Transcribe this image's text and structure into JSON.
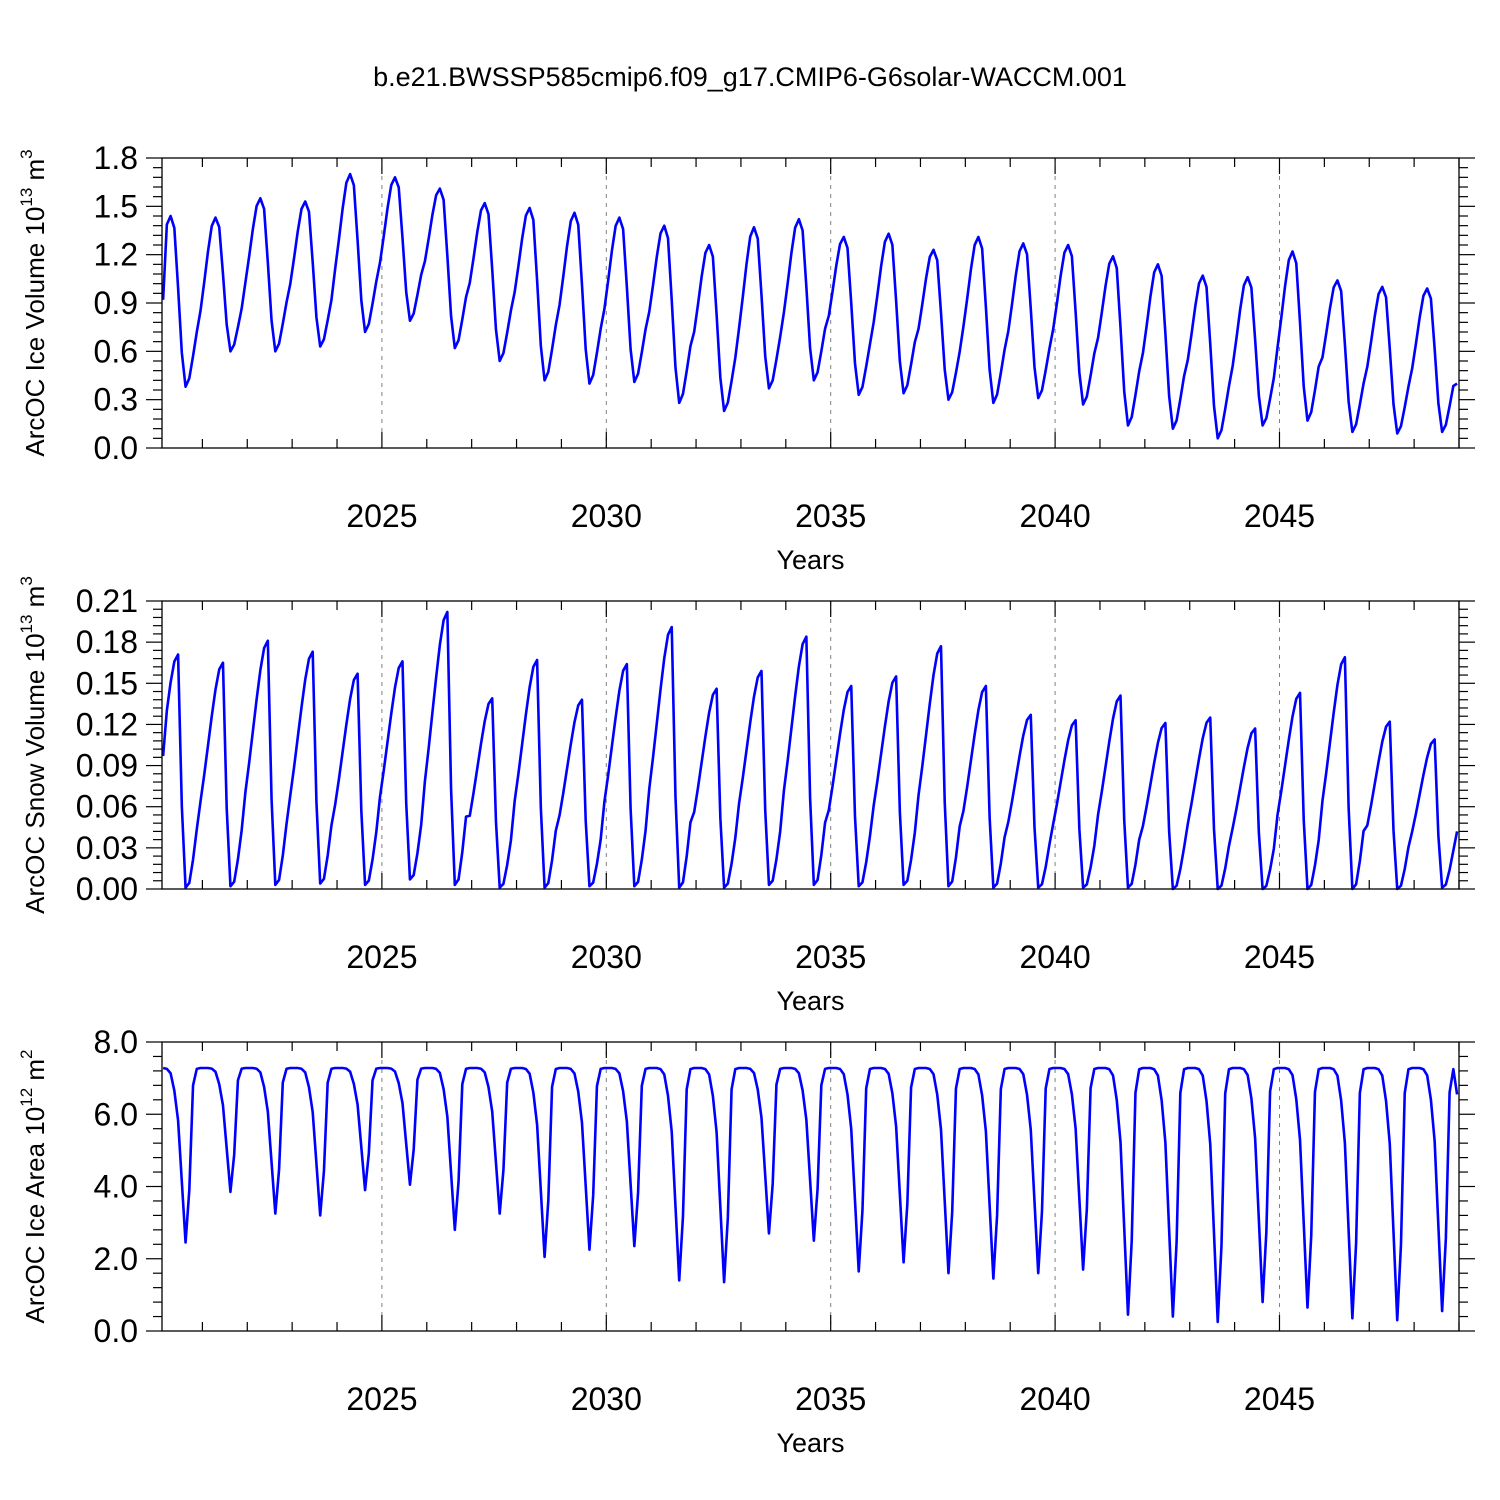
{
  "title": "b.e21.BWSSP585cmip6.f09_g17.CMIP6-G6solar-WACCM.001",
  "colors": {
    "line": "#0000ff",
    "axis": "#000000",
    "refline": "#808080"
  },
  "chart_data": [
    {
      "type": "line",
      "name": "ice_volume",
      "ylabel": "ArcOC Ice Volume 10",
      "ylabel_exp": "13",
      "ylabel_unit": " m",
      "ylabel_unit_exp": "3",
      "xlabel": "Years",
      "xlim": [
        2020.1,
        2049.0
      ],
      "ylim": [
        0.0,
        1.8
      ],
      "yticks": [
        0.0,
        0.3,
        0.6,
        0.9,
        1.2,
        1.5,
        1.8
      ],
      "ytick_labels": [
        "0.0",
        "0.3",
        "0.6",
        "0.9",
        "1.2",
        "1.5",
        "1.8"
      ],
      "xticks": [
        2025,
        2030,
        2035,
        2040,
        2045
      ],
      "xtick_labels": [
        "2025",
        "2030",
        "2035",
        "2040",
        "2045"
      ],
      "reference_lines_x": [
        2025,
        2030,
        2035,
        2040,
        2045
      ],
      "series_start": 2020.125,
      "series_step": 0.08333,
      "annual_max": [
        1.44,
        1.43,
        1.55,
        1.53,
        1.7,
        1.68,
        1.61,
        1.52,
        1.49,
        1.46,
        1.43,
        1.38,
        1.26,
        1.37,
        1.42,
        1.31,
        1.33,
        1.23,
        1.31,
        1.27,
        1.26,
        1.19,
        1.14,
        1.07,
        1.06,
        1.22,
        1.04,
        1.0,
        0.99
      ],
      "annual_min": [
        0.38,
        0.6,
        0.6,
        0.63,
        0.72,
        0.79,
        0.62,
        0.54,
        0.42,
        0.4,
        0.41,
        0.28,
        0.23,
        0.37,
        0.42,
        0.33,
        0.34,
        0.3,
        0.28,
        0.31,
        0.27,
        0.14,
        0.12,
        0.06,
        0.14,
        0.17,
        0.1,
        0.09,
        0.1
      ],
      "start_value": 0.92,
      "end_value": 0.4,
      "series": [
        {
          "values": []
        }
      ]
    },
    {
      "type": "line",
      "name": "snow_volume",
      "ylabel": "ArcOC Snow Volume 10",
      "ylabel_exp": "13",
      "ylabel_unit": " m",
      "ylabel_unit_exp": "3",
      "xlabel": "Years",
      "xlim": [
        2020.1,
        2049.0
      ],
      "ylim": [
        0.0,
        0.21
      ],
      "yticks": [
        0.0,
        0.03,
        0.06,
        0.09,
        0.12,
        0.15,
        0.18,
        0.21
      ],
      "ytick_labels": [
        "0.00",
        "0.03",
        "0.06",
        "0.09",
        "0.12",
        "0.15",
        "0.18",
        "0.21"
      ],
      "xticks": [
        2025,
        2030,
        2035,
        2040,
        2045
      ],
      "xtick_labels": [
        "2025",
        "2030",
        "2035",
        "2040",
        "2045"
      ],
      "reference_lines_x": [
        2025,
        2030,
        2035,
        2040,
        2045
      ],
      "series_start": 2020.125,
      "series_step": 0.08333,
      "annual_max": [
        0.171,
        0.165,
        0.181,
        0.173,
        0.157,
        0.166,
        0.202,
        0.139,
        0.167,
        0.138,
        0.164,
        0.191,
        0.146,
        0.159,
        0.184,
        0.148,
        0.155,
        0.177,
        0.148,
        0.127,
        0.123,
        0.141,
        0.121,
        0.125,
        0.117,
        0.143,
        0.169,
        0.122,
        0.109
      ],
      "annual_min": [
        0.001,
        0.002,
        0.003,
        0.004,
        0.003,
        0.007,
        0.003,
        0.001,
        0.001,
        0.002,
        0.002,
        0.001,
        0.001,
        0.003,
        0.003,
        0.002,
        0.003,
        0.002,
        0.001,
        0.001,
        0.001,
        0.001,
        0.0,
        0.0,
        0.0,
        0.0,
        0.0,
        0.0,
        0.001
      ],
      "start_value": 0.097,
      "end_value": 0.042,
      "series": [
        {
          "values": []
        }
      ]
    },
    {
      "type": "line",
      "name": "ice_area",
      "ylabel": "ArcOC Ice Area 10",
      "ylabel_exp": "12",
      "ylabel_unit": " m",
      "ylabel_unit_exp": "2",
      "xlabel": "Years",
      "xlim": [
        2020.1,
        2049.0
      ],
      "ylim": [
        0.0,
        8.0
      ],
      "yticks": [
        0.0,
        2.0,
        4.0,
        6.0,
        8.0
      ],
      "ytick_labels": [
        "0.0",
        "2.0",
        "4.0",
        "6.0",
        "8.0"
      ],
      "xticks": [
        2025,
        2030,
        2035,
        2040,
        2045
      ],
      "xtick_labels": [
        "2025",
        "2030",
        "2035",
        "2040",
        "2045"
      ],
      "reference_lines_x": [
        2025,
        2030,
        2035,
        2040,
        2045
      ],
      "series_start": 2020.125,
      "series_step": 0.08333,
      "annual_max": [
        7.28,
        7.28,
        7.28,
        7.28,
        7.28,
        7.28,
        7.28,
        7.28,
        7.28,
        7.28,
        7.28,
        7.28,
        7.28,
        7.28,
        7.28,
        7.28,
        7.28,
        7.28,
        7.28,
        7.28,
        7.28,
        7.28,
        7.28,
        7.28,
        7.28,
        7.28,
        7.28,
        7.28,
        7.28
      ],
      "annual_min": [
        2.45,
        3.85,
        3.25,
        3.2,
        3.9,
        4.05,
        2.8,
        3.25,
        2.05,
        2.25,
        2.35,
        1.4,
        1.35,
        2.7,
        2.5,
        1.65,
        1.9,
        1.6,
        1.45,
        1.6,
        1.7,
        0.45,
        0.4,
        0.25,
        0.8,
        0.65,
        0.35,
        0.3,
        0.55
      ],
      "start_value": 7.28,
      "end_value": 6.55,
      "series": [
        {
          "values": []
        }
      ]
    }
  ]
}
